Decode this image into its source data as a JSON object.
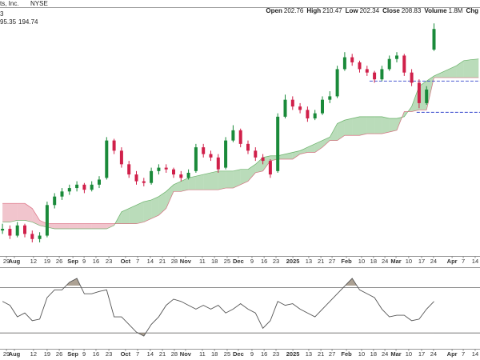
{
  "chart_data": {
    "type": "candlestick",
    "title": "ts, Inc.",
    "exchange": "NYSE",
    "legend_top": "3",
    "legend_values": [
      {
        "text": "95.35",
        "color": "#1a8a3a"
      },
      {
        "text": "194.74",
        "color": "#d0204a"
      }
    ],
    "quote": [
      {
        "label": "Open",
        "value": "202.76"
      },
      {
        "label": "High",
        "value": "210.47"
      },
      {
        "label": "Low",
        "value": "202.34"
      },
      {
        "label": "Close",
        "value": "208.83"
      },
      {
        "label": "Volume",
        "value": "1.8M"
      },
      {
        "label": "Chg",
        "value": ""
      }
    ],
    "xlim": [
      0,
      193.55
    ],
    "xticks": [
      {
        "value": 2.6,
        "label": "29"
      },
      {
        "value": 5.8,
        "label": "Aug"
      },
      {
        "value": 13.5,
        "label": "12"
      },
      {
        "value": 19,
        "label": "19"
      },
      {
        "value": 23.9,
        "label": "26"
      },
      {
        "value": 29.4,
        "label": "Sep"
      },
      {
        "value": 33.9,
        "label": "9"
      },
      {
        "value": 38.7,
        "label": "16"
      },
      {
        "value": 43.9,
        "label": "23"
      },
      {
        "value": 50.6,
        "label": "Oct"
      },
      {
        "value": 55.5,
        "label": "7"
      },
      {
        "value": 60.6,
        "label": "14"
      },
      {
        "value": 65.5,
        "label": "21"
      },
      {
        "value": 70.3,
        "label": "28"
      },
      {
        "value": 74.8,
        "label": "Nov"
      },
      {
        "value": 81.6,
        "label": "11"
      },
      {
        "value": 86.5,
        "label": "18"
      },
      {
        "value": 91.6,
        "label": "25"
      },
      {
        "value": 96.1,
        "label": "Dec"
      },
      {
        "value": 101.6,
        "label": "9"
      },
      {
        "value": 106.5,
        "label": "16"
      },
      {
        "value": 111.3,
        "label": "23"
      },
      {
        "value": 118.1,
        "label": "2025"
      },
      {
        "value": 124.5,
        "label": "13"
      },
      {
        "value": 129.4,
        "label": "21"
      },
      {
        "value": 133.9,
        "label": "27"
      },
      {
        "value": 139.7,
        "label": "Feb"
      },
      {
        "value": 145.8,
        "label": "10"
      },
      {
        "value": 150.6,
        "label": "18"
      },
      {
        "value": 155.2,
        "label": "24"
      },
      {
        "value": 159.7,
        "label": "Mar"
      },
      {
        "value": 164.8,
        "label": "10"
      },
      {
        "value": 170,
        "label": "17"
      },
      {
        "value": 174.8,
        "label": "24"
      },
      {
        "value": 182.3,
        "label": "Apr"
      },
      {
        "value": 186.8,
        "label": "7"
      },
      {
        "value": 191.6,
        "label": "14"
      }
    ],
    "ylim": [
      142,
      215
    ],
    "up_color": "#1a8a3a",
    "down_color": "#d0204a",
    "x": [
      1,
      4,
      7,
      10,
      13,
      16,
      19,
      22,
      25,
      28,
      31,
      34,
      37,
      40,
      43,
      46,
      49,
      52,
      55,
      58,
      61,
      64,
      67,
      70,
      73,
      76,
      79,
      82,
      85,
      88,
      91,
      94,
      97,
      100,
      103,
      106,
      109,
      112,
      115,
      118,
      121,
      124,
      127,
      130,
      133,
      136,
      139,
      142,
      145,
      148,
      151,
      154,
      157,
      160,
      163,
      166,
      169,
      172,
      175
    ],
    "open": [
      149.5,
      150,
      148,
      151,
      148.5,
      147,
      148,
      157,
      159.5,
      161,
      162,
      163,
      161.5,
      163,
      165,
      176,
      173,
      169,
      166,
      164,
      163.5,
      167,
      168,
      167.5,
      166,
      165,
      167,
      174,
      172,
      171,
      168,
      176,
      179,
      175,
      173,
      171,
      170,
      167,
      183,
      188,
      186,
      185,
      182.5,
      184,
      188,
      189,
      197,
      200.5,
      199,
      197,
      196,
      194,
      197,
      200,
      201,
      196,
      193,
      187,
      202.76
    ],
    "high": [
      151.5,
      151,
      152,
      151.5,
      149.5,
      149,
      158,
      160.5,
      162,
      163,
      164,
      163.5,
      164,
      165.5,
      177,
      176.5,
      174,
      170,
      167,
      165,
      168,
      169,
      169,
      168,
      167,
      167.5,
      175,
      175,
      173,
      172,
      177,
      180.5,
      179.5,
      176,
      174,
      172,
      170.5,
      184,
      189.5,
      189,
      187,
      186,
      185,
      189,
      190.5,
      198,
      202,
      201.5,
      199.5,
      198,
      196.5,
      198,
      201,
      202,
      201.5,
      197,
      194,
      192,
      210.47
    ],
    "low": [
      148.5,
      147,
      147.5,
      147.5,
      146,
      146,
      147.5,
      156,
      158.5,
      160,
      161,
      160.5,
      161,
      162,
      164.5,
      172,
      168,
      165,
      163,
      162.5,
      163,
      166,
      166.5,
      165,
      164,
      164.5,
      166.5,
      171,
      170,
      166.5,
      167.5,
      175.5,
      174,
      172,
      170,
      169,
      165,
      166.5,
      182.5,
      185,
      184,
      181.5,
      182,
      183.5,
      187,
      188.5,
      196.5,
      198,
      196,
      195,
      193,
      193.5,
      196.5,
      199,
      195,
      192,
      185.5,
      186.5,
      202.34
    ],
    "close": [
      150,
      148,
      151,
      148.5,
      147,
      148,
      157,
      159.5,
      161,
      162,
      163,
      161.5,
      163,
      164.5,
      176,
      173,
      169,
      166,
      164,
      163.5,
      167,
      168,
      167.5,
      166,
      165,
      166.5,
      174,
      172,
      171,
      167.5,
      176,
      179,
      175,
      173,
      171,
      170,
      166,
      183,
      188,
      186,
      185,
      182.5,
      184,
      188,
      189,
      197,
      200.5,
      199,
      197,
      196,
      194,
      197,
      200,
      201,
      196,
      193,
      187,
      191,
      208.83
    ],
    "cloud": {
      "x": [
        1,
        4,
        7,
        10,
        13,
        16,
        19,
        22,
        25,
        28,
        31,
        34,
        37,
        40,
        43,
        46,
        49,
        52,
        55,
        58,
        61,
        64,
        67,
        70,
        73,
        76,
        79,
        82,
        85,
        88,
        91,
        94,
        97,
        100,
        103,
        106,
        109,
        112,
        115,
        118,
        121,
        124,
        127,
        130,
        133,
        136,
        139,
        142,
        145,
        148,
        151,
        154,
        157,
        160,
        163,
        166,
        169,
        172,
        175,
        178,
        181,
        184,
        187,
        190,
        193
      ],
      "span_a": [
        152,
        152,
        152.5,
        152.5,
        152,
        151,
        150.5,
        150,
        150,
        150,
        150,
        150,
        150,
        150,
        150,
        151,
        155,
        156,
        157,
        158,
        158.5,
        159.5,
        161,
        163,
        164,
        165,
        165.5,
        166,
        166.5,
        167,
        167,
        167,
        167.5,
        167.5,
        169,
        171,
        171.5,
        171.5,
        172,
        172.5,
        173,
        174,
        175,
        176,
        177,
        181,
        182,
        182.5,
        183,
        183,
        183,
        183,
        182.5,
        182.5,
        183,
        186,
        192,
        193.5,
        195,
        196,
        197,
        198,
        199.5,
        199.8,
        200
      ],
      "span_b": [
        157.5,
        157.5,
        157.5,
        157.5,
        156,
        152.5,
        151.5,
        151.5,
        151.5,
        151.5,
        151.5,
        151.5,
        151.5,
        151.5,
        151.5,
        151.5,
        151.5,
        151.5,
        151.5,
        152,
        153,
        154,
        156,
        161,
        161,
        161.5,
        161.5,
        161.5,
        161.5,
        161.5,
        162,
        162,
        163,
        164,
        166.5,
        167,
        170,
        170.5,
        170.5,
        170.5,
        172,
        172.5,
        172.5,
        174,
        176,
        176,
        177.5,
        177.5,
        177.5,
        178,
        178,
        178,
        178.5,
        179,
        184.5,
        184.5,
        185,
        185,
        194.5,
        194.5,
        194.5,
        194.5,
        194.5,
        194.5,
        194.5
      ],
      "up_color": "#3a9a3a",
      "down_color": "#d0405a"
    },
    "hlines": [
      {
        "value": 193.5,
        "x0": 149,
        "color": "#3344cc"
      },
      {
        "value": 184.3,
        "x0": 168,
        "color": "#3344cc"
      }
    ],
    "rsi": {
      "values": [
        57.8,
        54.4,
        44.2,
        47.6,
        40.8,
        42.2,
        61.2,
        68.0,
        68.0,
        74.7,
        78.1,
        64.6,
        64.6,
        66.6,
        68.0,
        44.2,
        44.2,
        37.5,
        30.7,
        27.3,
        37.5,
        44.2,
        54.4,
        59.8,
        57.8,
        54.4,
        51.0,
        54.4,
        51.0,
        54.4,
        47.6,
        51.0,
        55.8,
        51.0,
        47.6,
        34.1,
        40.8,
        57.8,
        54.4,
        55.8,
        51.0,
        47.6,
        44.2,
        51.0,
        57.8,
        64.6,
        71.4,
        78.1,
        68.0,
        64.6,
        61.2,
        51.0,
        44.2,
        45.6,
        45.6,
        40.8,
        42.2,
        51.0,
        57.8
      ],
      "ylim": [
        16,
        88
      ],
      "levels": [
        70,
        30
      ],
      "color": "#555555",
      "shade_color": "#8a7a66"
    }
  }
}
